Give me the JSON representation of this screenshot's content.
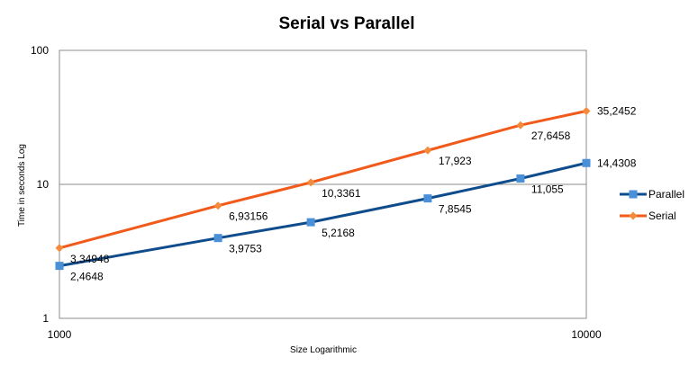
{
  "chart_data": {
    "type": "line",
    "title": "Serial vs Parallel",
    "xlabel": "Size Logarithmic",
    "ylabel": "Time in seconds Log",
    "x_scale": "log",
    "y_scale": "log",
    "xlim": [
      1000,
      10000
    ],
    "ylim": [
      1,
      100
    ],
    "x_tick_labels": [
      "1000",
      "10000"
    ],
    "y_tick_labels": [
      "1",
      "10",
      "100"
    ],
    "grid": true,
    "legend_position": "right",
    "series": [
      {
        "name": "Parallel",
        "color": "#0F4C8C",
        "marker": "square",
        "marker_color": "#4A90D9",
        "x": [
          1000,
          2000,
          3000,
          5000,
          7500,
          10000
        ],
        "y": [
          2.4648,
          3.9753,
          5.2168,
          7.8545,
          11.055,
          14.4308
        ],
        "labels": [
          "2,4648",
          "3,9753",
          "5,2168",
          "7,8545",
          "11,055",
          "14,4308"
        ]
      },
      {
        "name": "Serial",
        "color": "#F05A1A",
        "marker": "diamond",
        "marker_color": "#F58A3A",
        "x": [
          1000,
          2000,
          3000,
          5000,
          7500,
          10000
        ],
        "y": [
          3.34948,
          6.93156,
          10.3361,
          17.923,
          27.6458,
          35.2452
        ],
        "labels": [
          "3,34948",
          "6,93156",
          "10,3361",
          "17,923",
          "27,6458",
          "35,2452"
        ]
      }
    ]
  }
}
